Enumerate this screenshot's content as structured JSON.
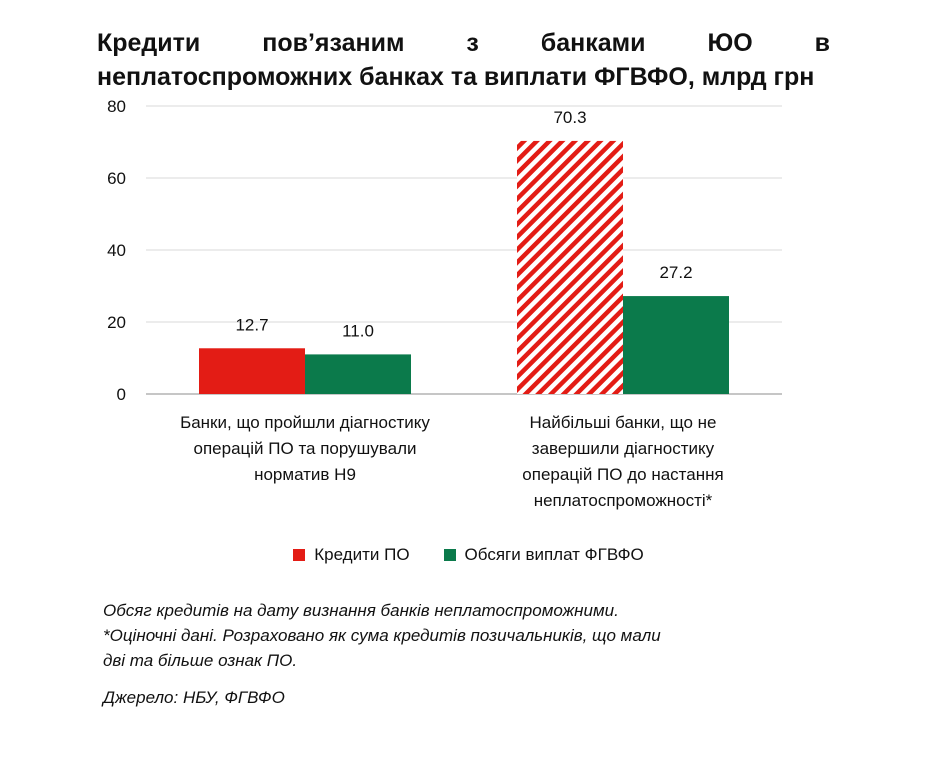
{
  "title": {
    "line1": "Кредити пов’язаним з банками ЮО в",
    "line2": "неплатоспроможних банках та виплати ФГВФО, млрд грн"
  },
  "chart_data": {
    "type": "bar",
    "categories": [
      "Банки, що пройшли діагностику операцій ПО та порушували норматив Н9",
      "Найбільші банки, що не завершили діагностику операцій ПО до настання неплатоспроможності*"
    ],
    "series": [
      {
        "name": "Кредити ПО",
        "values": [
          12.7,
          70.3
        ],
        "color": "#e31c15",
        "hatched": [
          false,
          true
        ]
      },
      {
        "name": "Обсяги виплат ФГВФО",
        "values": [
          11.0,
          27.2
        ],
        "color": "#0b7a4b",
        "hatched": [
          false,
          false
        ]
      }
    ],
    "value_labels": [
      [
        "12.7",
        "70.3"
      ],
      [
        "11.0",
        "27.2"
      ]
    ],
    "ylim": [
      0,
      80
    ],
    "yticks": [
      "0",
      "20",
      "40",
      "60",
      "80"
    ],
    "grid": true,
    "legend": "bottom"
  },
  "category_labels": [
    [
      "Банки, що пройшли діагностику",
      "операцій ПО та порушували",
      "норматив Н9"
    ],
    [
      "Найбільші банки, що не",
      "завершили діагностику",
      "операцій ПО до настання",
      "неплатоспроможності*"
    ]
  ],
  "notes": {
    "line1": "Обсяг кредитів на дату визнання банків неплатоспроможними.",
    "line2": "*Оціночні дані. Розраховано як сума кредитів позичальників, що мали",
    "line3": "дві та більше ознак ПО.",
    "source": "Джерело: НБУ, ФГВФО"
  }
}
